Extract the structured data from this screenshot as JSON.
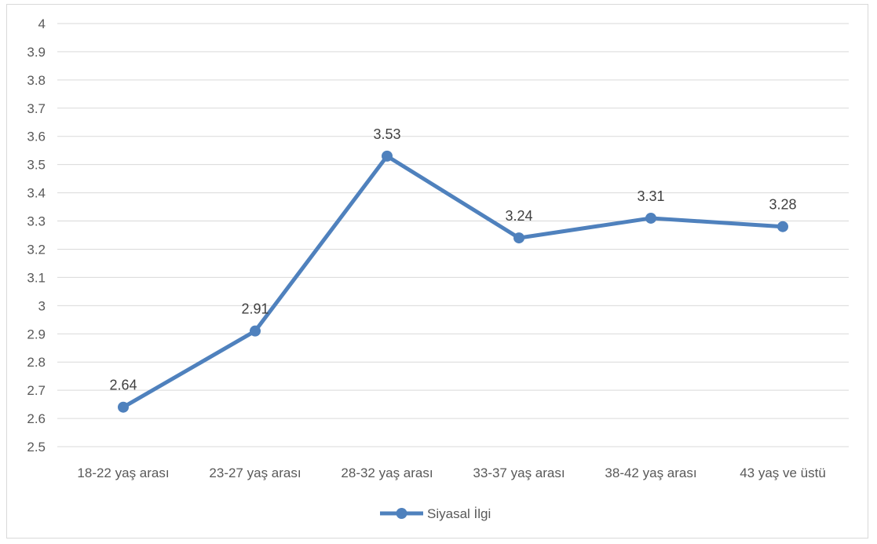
{
  "chart_data": {
    "type": "line",
    "title": "",
    "xlabel": "",
    "ylabel": "",
    "categories": [
      "18-22 yaş arası",
      "23-27 yaş arası",
      "28-32 yaş arası",
      "33-37 yaş arası",
      "38-42 yaş arası",
      "43 yaş ve üstü"
    ],
    "series": [
      {
        "name": "Siyasal İlgi",
        "values": [
          2.64,
          2.91,
          3.53,
          3.24,
          3.31,
          3.28
        ],
        "data_labels": [
          "2.64",
          "2.91",
          "3.53",
          "3.24",
          "3.31",
          "3.28"
        ],
        "color": "#4f81bd"
      }
    ],
    "ylim": [
      2.5,
      4
    ],
    "y_ticks": [
      "2.5",
      "2.6",
      "2.7",
      "2.8",
      "2.9",
      "3",
      "3.1",
      "3.2",
      "3.3",
      "3.4",
      "3.5",
      "3.6",
      "3.7",
      "3.8",
      "3.9",
      "4"
    ],
    "grid": true,
    "legend_position": "bottom",
    "colors": {
      "series": "#4f81bd",
      "grid": "#d9d9d9",
      "axis_text": "#595959",
      "label_text": "#404040"
    }
  }
}
